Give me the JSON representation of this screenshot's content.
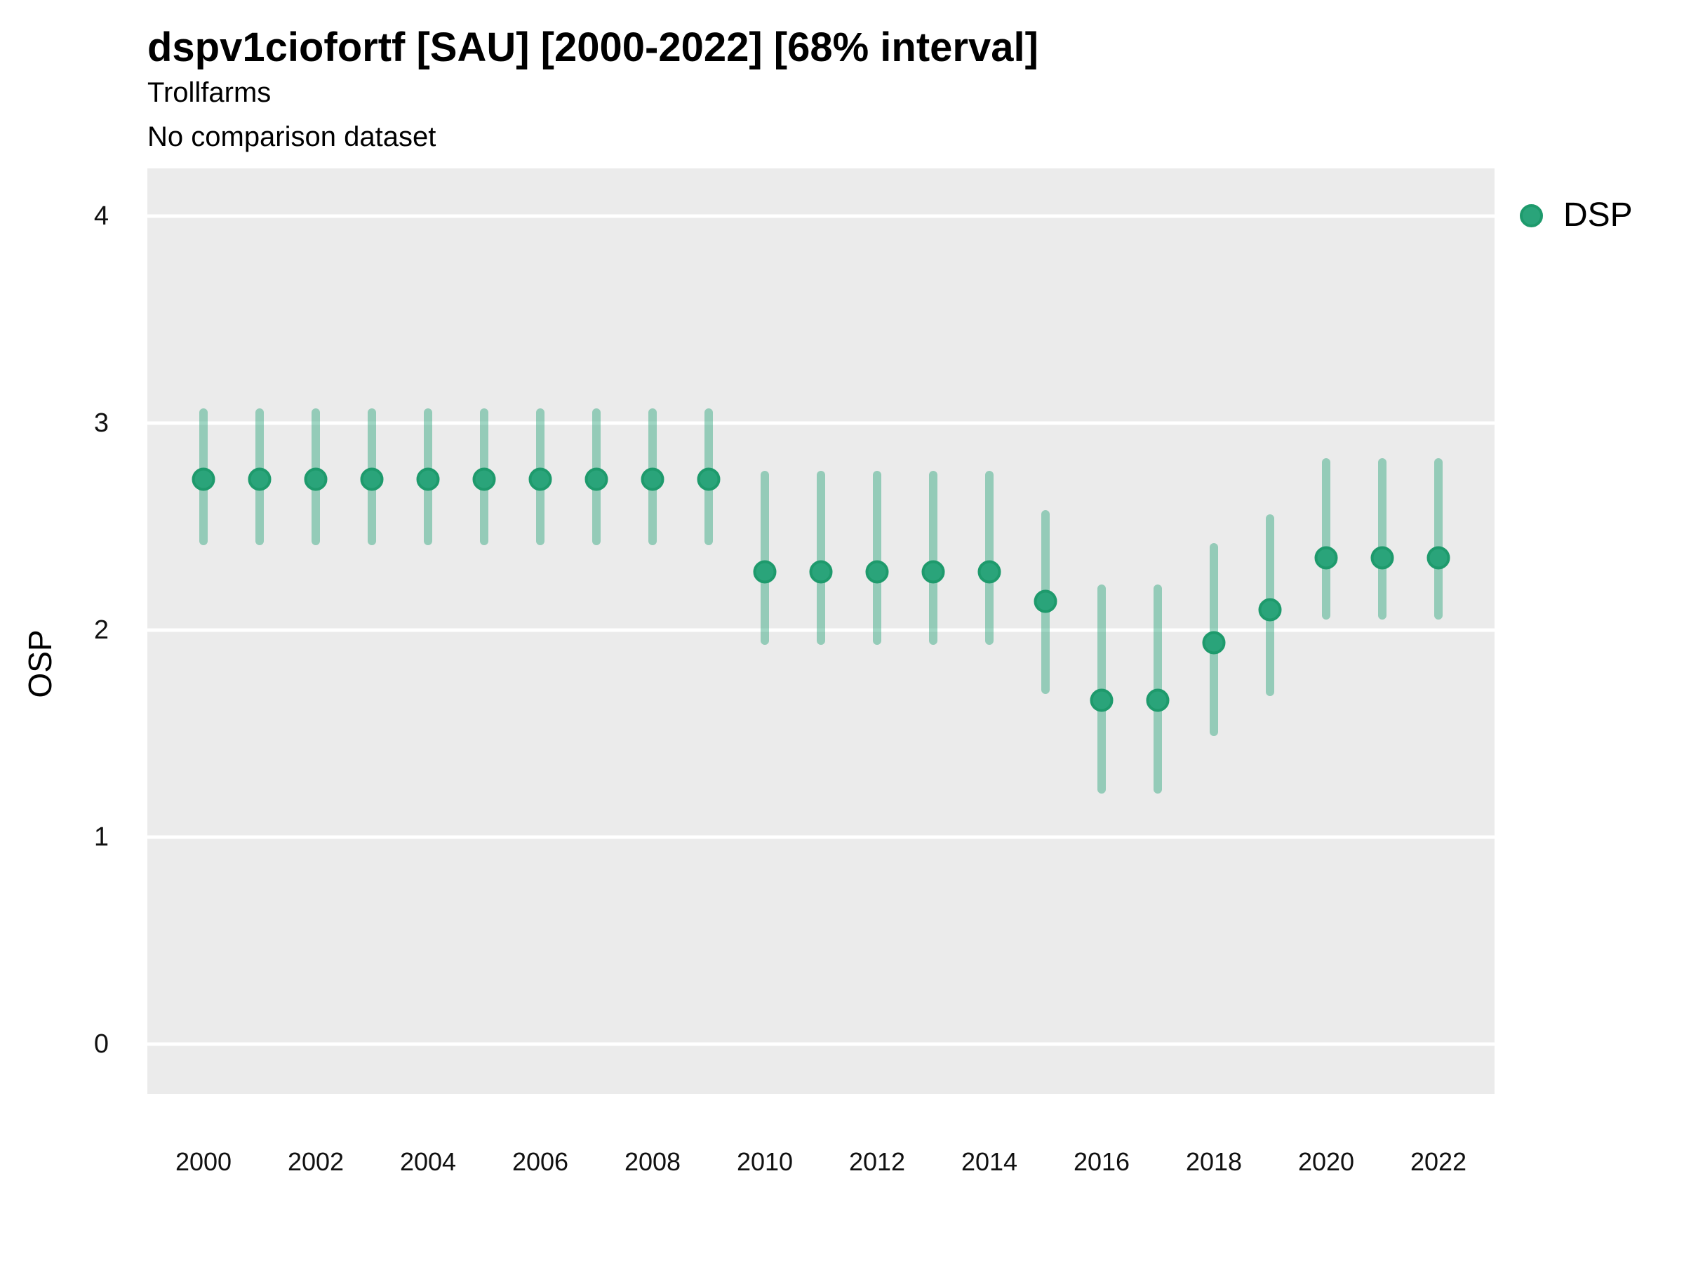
{
  "colors": {
    "accent": "#2AA47A",
    "accent_dark": "#1E9A6C",
    "interval_alpha": 0.45,
    "panel_bg": "#EBEBEB",
    "gridline": "#FFFFFF",
    "text": "#000000"
  },
  "chart_data": {
    "type": "scatter",
    "title": "dspv1ciofortf [SAU] [2000-2022] [68% interval]",
    "subtitle": "Trollfarms",
    "note": "No comparison dataset",
    "xlabel": "",
    "ylabel": "OSP",
    "interval_label": "68% interval",
    "grid": "horizontal-only",
    "legend_position": "right",
    "xlim": [
      1999,
      2023
    ],
    "ylim": [
      -0.24,
      4.23
    ],
    "yticks": [
      0,
      1,
      2,
      3,
      4
    ],
    "xticks": [
      2000,
      2002,
      2004,
      2006,
      2008,
      2010,
      2012,
      2014,
      2016,
      2018,
      2020,
      2022
    ],
    "series": [
      {
        "name": "DSP",
        "marker": "circle",
        "x": [
          2000,
          2001,
          2002,
          2003,
          2004,
          2005,
          2006,
          2007,
          2008,
          2009,
          2010,
          2011,
          2012,
          2013,
          2014,
          2015,
          2016,
          2017,
          2018,
          2019,
          2020,
          2021,
          2022
        ],
        "y": [
          2.73,
          2.73,
          2.73,
          2.73,
          2.73,
          2.73,
          2.73,
          2.73,
          2.73,
          2.73,
          2.28,
          2.28,
          2.28,
          2.28,
          2.28,
          2.14,
          1.66,
          1.66,
          1.94,
          2.1,
          2.35,
          2.35,
          2.35
        ],
        "y_lo": [
          2.41,
          2.41,
          2.41,
          2.41,
          2.41,
          2.41,
          2.41,
          2.41,
          2.41,
          2.41,
          1.93,
          1.93,
          1.93,
          1.93,
          1.93,
          1.69,
          1.21,
          1.21,
          1.49,
          1.68,
          2.05,
          2.05,
          2.05
        ],
        "y_hi": [
          3.07,
          3.07,
          3.07,
          3.07,
          3.07,
          3.07,
          3.07,
          3.07,
          3.07,
          3.07,
          2.77,
          2.77,
          2.77,
          2.77,
          2.77,
          2.58,
          2.22,
          2.22,
          2.42,
          2.56,
          2.83,
          2.83,
          2.83
        ]
      }
    ]
  }
}
